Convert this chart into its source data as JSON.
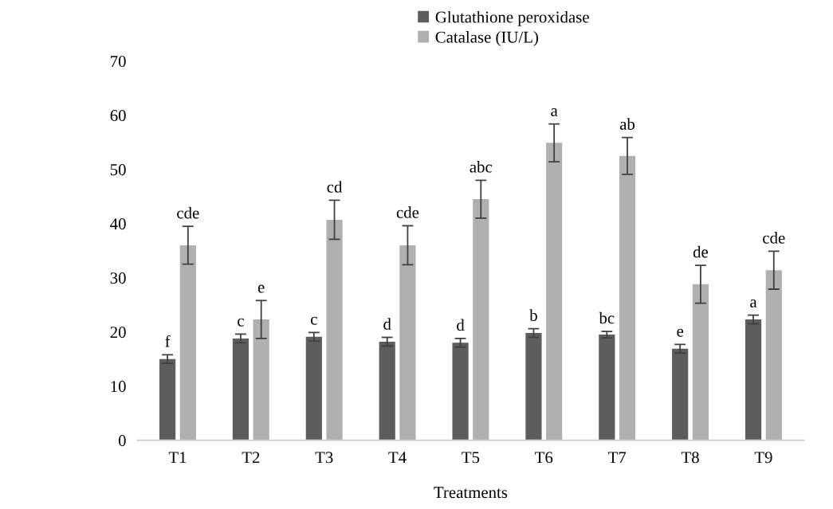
{
  "chart_data": {
    "type": "bar",
    "xlabel": "Treatments",
    "categories": [
      "T1",
      "T2",
      "T3",
      "T4",
      "T5",
      "T6",
      "T7",
      "T8",
      "T9"
    ],
    "series": [
      {
        "name": "Glutathione peroxidase",
        "color": "#5d5d5d",
        "values": [
          15.0,
          18.8,
          19.1,
          18.2,
          18.0,
          19.8,
          19.5,
          16.9,
          22.3
        ],
        "errors": [
          0.8,
          0.8,
          0.8,
          0.8,
          0.8,
          0.8,
          0.6,
          0.8,
          0.8
        ],
        "value_labels": [
          "f",
          "c",
          "c",
          "d",
          "d",
          "b",
          "bc",
          "e",
          "a"
        ]
      },
      {
        "name": "Catalase (IU/L)",
        "color": "#b0b0b0",
        "values": [
          36.0,
          22.3,
          40.7,
          36.0,
          44.5,
          54.9,
          52.5,
          28.8,
          31.4
        ],
        "errors": [
          3.5,
          3.5,
          3.6,
          3.6,
          3.5,
          3.5,
          3.4,
          3.5,
          3.5
        ],
        "value_labels": [
          "cde",
          "e",
          "cd",
          "cde",
          "abc",
          "a",
          "ab",
          "de",
          "cde"
        ]
      }
    ],
    "ylim": [
      0,
      70
    ],
    "yticks": [
      0,
      10,
      20,
      30,
      40,
      50,
      60,
      70
    ],
    "grid": false,
    "legend": "top"
  }
}
